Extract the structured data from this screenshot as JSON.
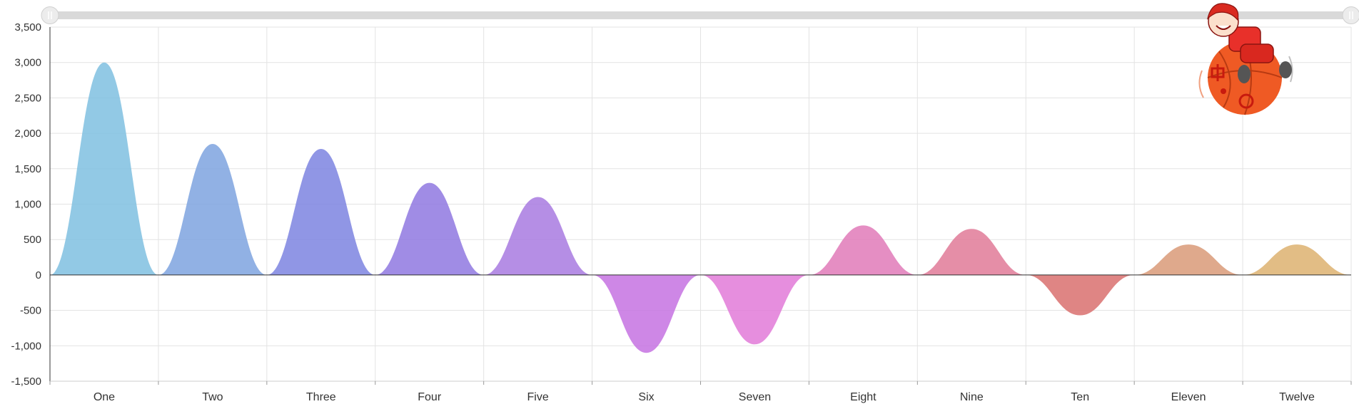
{
  "chart_data": {
    "type": "area",
    "title": "",
    "xlabel": "",
    "ylabel": "",
    "categories": [
      "One",
      "Two",
      "Three",
      "Four",
      "Five",
      "Six",
      "Seven",
      "Eight",
      "Nine",
      "Ten",
      "Eleven",
      "Twelve"
    ],
    "values": [
      3000,
      1850,
      1780,
      1300,
      1100,
      -1100,
      -980,
      700,
      650,
      -570,
      430,
      430
    ],
    "ylim": [
      -1500,
      3500
    ],
    "yticks": [
      "3,500",
      "3,000",
      "2,500",
      "2,000",
      "1,500",
      "1,000",
      "500",
      "0",
      "-500",
      "-1,000",
      "-1,500"
    ],
    "grid": true,
    "legend": "none",
    "colors": [
      "#7fbfe0",
      "#7ea3df",
      "#7d84e0",
      "#8f78e0",
      "#a87ae0",
      "#c672e2",
      "#e27ad8",
      "#e07ab8",
      "#e07a98",
      "#d9706e",
      "#d99a78",
      "#ddb270"
    ],
    "datazoom": {
      "start": 0,
      "end": 100
    }
  }
}
